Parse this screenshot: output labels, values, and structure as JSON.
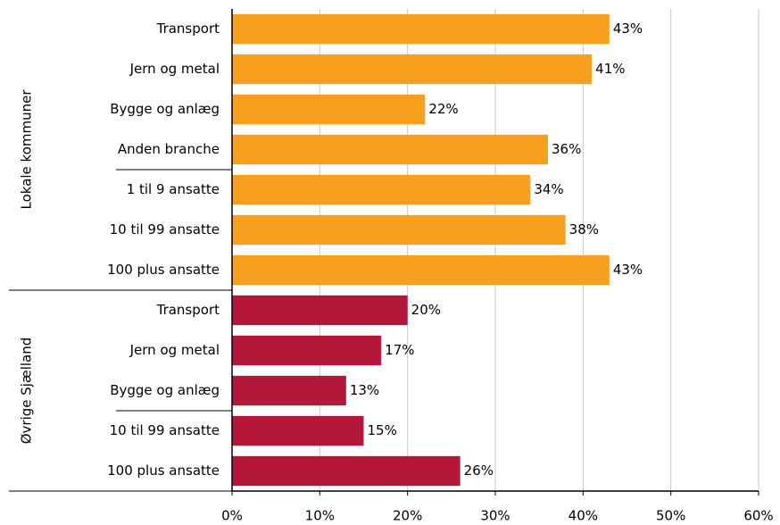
{
  "chart_data": {
    "type": "hbar",
    "groups": [
      {
        "name": "Lokale kommuner",
        "color": "#f7a01f",
        "categories": [
          "Transport",
          "Jern og metal",
          "Bygge og anlæg",
          "Anden branche",
          "1 til 9 ansatte",
          "10 til 99 ansatte",
          "100 plus ansatte"
        ],
        "values": [
          43,
          41,
          22,
          36,
          34,
          38,
          43
        ],
        "value_labels": [
          "43%",
          "41%",
          "22%",
          "36%",
          "34%",
          "38%",
          "43%"
        ]
      },
      {
        "name": "Øvrige Sjælland",
        "color": "#b5173a",
        "categories": [
          "Transport",
          "Jern og metal",
          "Bygge og anlæg",
          "10 til 99 ansatte",
          "100 plus ansatte"
        ],
        "values": [
          20,
          17,
          13,
          15,
          26
        ],
        "value_labels": [
          "20%",
          "17%",
          "13%",
          "15%",
          "26%"
        ]
      }
    ],
    "xlim": [
      0,
      60
    ],
    "xticks": [
      {
        "value": 0,
        "label": "0%"
      },
      {
        "value": 10,
        "label": "10%"
      },
      {
        "value": 20,
        "label": "20%"
      },
      {
        "value": 30,
        "label": "30%"
      },
      {
        "value": 40,
        "label": "40%"
      },
      {
        "value": 50,
        "label": "50%"
      },
      {
        "value": 60,
        "label": "60%"
      }
    ],
    "grid": true
  }
}
